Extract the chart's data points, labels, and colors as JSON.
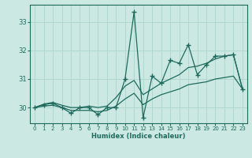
{
  "xlabel": "Humidex (Indice chaleur)",
  "bg_color": "#cce8e2",
  "line_color": "#1e6b5e",
  "grid_color": "#b0d8d0",
  "xlim": [
    -0.5,
    23.5
  ],
  "ylim": [
    29.45,
    33.6
  ],
  "yticks": [
    30,
    31,
    32,
    33
  ],
  "xticks": [
    0,
    1,
    2,
    3,
    4,
    5,
    6,
    7,
    8,
    9,
    10,
    11,
    12,
    13,
    14,
    15,
    16,
    17,
    18,
    19,
    20,
    21,
    22,
    23
  ],
  "x": [
    0,
    1,
    2,
    3,
    4,
    5,
    6,
    7,
    8,
    9,
    10,
    11,
    12,
    13,
    14,
    15,
    16,
    17,
    18,
    19,
    20,
    21,
    22,
    23
  ],
  "line_spiky": [
    30.0,
    30.1,
    30.15,
    30.0,
    29.8,
    30.0,
    30.0,
    29.75,
    30.0,
    30.0,
    31.0,
    33.35,
    29.65,
    31.1,
    30.85,
    31.65,
    31.55,
    32.2,
    31.15,
    31.5,
    31.8,
    31.8,
    31.85,
    30.65
  ],
  "line_upper": [
    30.0,
    30.12,
    30.18,
    30.08,
    30.0,
    30.0,
    30.05,
    30.0,
    30.05,
    30.35,
    30.75,
    30.95,
    30.45,
    30.65,
    30.85,
    31.0,
    31.15,
    31.4,
    31.45,
    31.55,
    31.7,
    31.8,
    31.85,
    30.65
  ],
  "line_lower": [
    30.0,
    30.05,
    30.08,
    30.0,
    29.9,
    29.9,
    29.9,
    29.85,
    29.9,
    30.05,
    30.3,
    30.5,
    30.1,
    30.3,
    30.45,
    30.55,
    30.65,
    30.8,
    30.85,
    30.9,
    31.0,
    31.05,
    31.1,
    30.65
  ]
}
